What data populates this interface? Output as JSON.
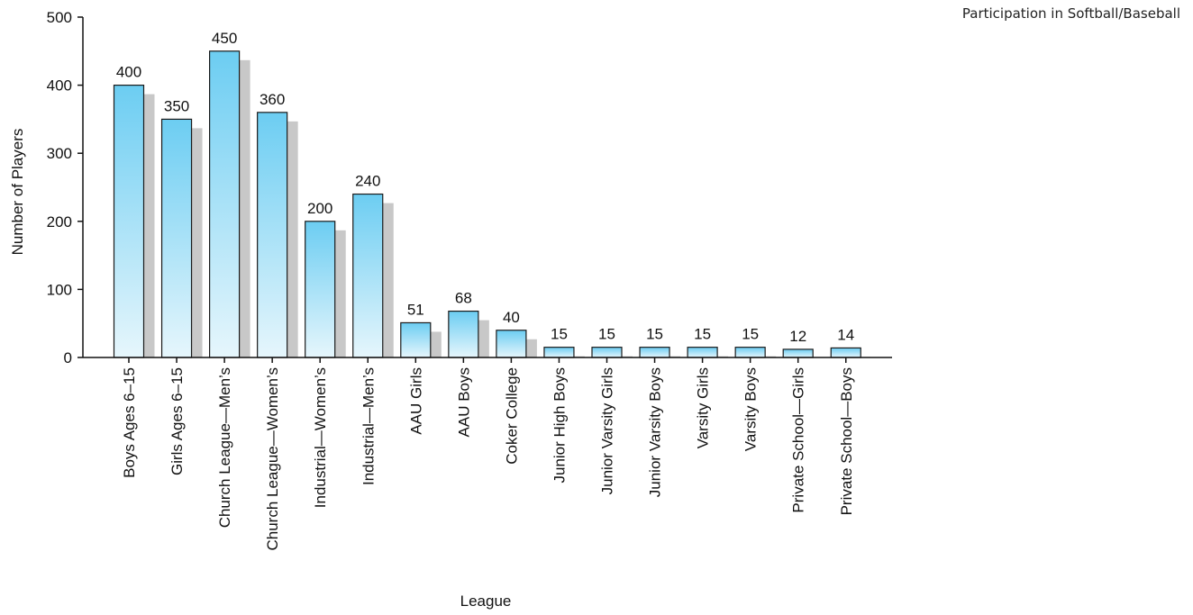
{
  "chart_data": {
    "type": "bar",
    "title": "Participation in Softball/Baseball",
    "xlabel": "League",
    "ylabel": "Number of Players",
    "ylim": [
      0,
      500
    ],
    "yticks": [
      "0",
      "100",
      "200",
      "300",
      "400",
      "500"
    ],
    "grid": false,
    "legend": "none",
    "categories": [
      "Boys Ages 6–15",
      "Girls Ages 6–15",
      "Church League—Men’s",
      "Church League—Women’s",
      "Industrial—Women’s",
      "Industrial—Men’s",
      "AAU Girls",
      "AAU Boys",
      "Coker College",
      "Junior High Boys",
      "Junior Varsity Girls",
      "Junior Varsity Boys",
      "Varsity Girls",
      "Varsity Boys",
      "Private School—Girls",
      "Private School—Boys"
    ],
    "values": [
      400,
      350,
      450,
      360,
      200,
      240,
      51,
      68,
      40,
      15,
      15,
      15,
      15,
      15,
      12,
      14
    ],
    "value_labels": [
      "400",
      "350",
      "450",
      "360",
      "200",
      "240",
      "51",
      "68",
      "40",
      "15",
      "15",
      "15",
      "15",
      "15",
      "12",
      "14"
    ],
    "colors": {
      "bar_top": "#6ccdf2",
      "bar_bottom": "#e6f6fc",
      "bar_stroke": "#1a1a1a",
      "shadow": "#c8c8c8",
      "axis": "#111111"
    }
  }
}
